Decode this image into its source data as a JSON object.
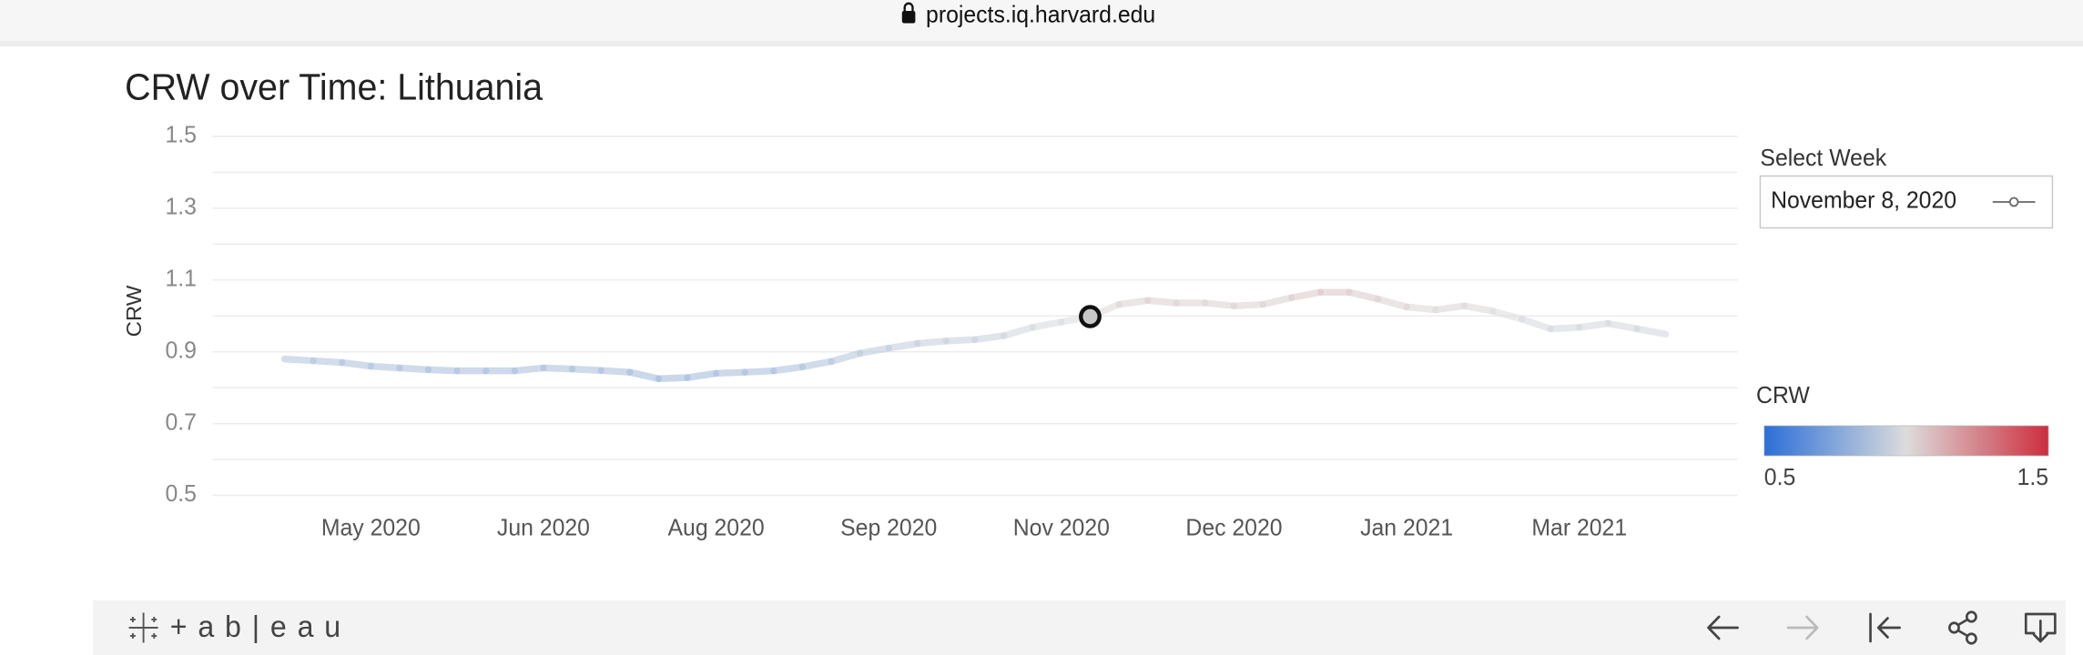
{
  "browser": {
    "url": "projects.iq.harvard.edu"
  },
  "chart_data": {
    "type": "line",
    "title": "CRW over Time: Lithuania",
    "y_label": "CRW",
    "x": [
      0,
      1,
      2,
      3,
      4,
      5,
      6,
      7,
      8,
      9,
      10,
      11,
      12,
      13,
      14,
      15,
      16,
      17,
      18,
      19,
      20,
      21,
      22,
      23,
      24,
      25,
      26,
      27,
      28,
      29,
      30,
      31,
      32,
      33,
      34,
      35,
      36,
      37,
      38,
      39,
      40,
      41,
      42,
      43,
      44,
      45,
      46,
      47,
      48
    ],
    "series": [
      {
        "name": "CRW",
        "values": [
          0.88,
          0.875,
          0.87,
          0.86,
          0.855,
          0.85,
          0.847,
          0.847,
          0.847,
          0.855,
          0.852,
          0.848,
          0.843,
          0.825,
          0.828,
          0.84,
          0.843,
          0.847,
          0.858,
          0.873,
          0.896,
          0.91,
          0.923,
          0.93,
          0.934,
          0.945,
          0.968,
          0.983,
          0.998,
          1.032,
          1.043,
          1.036,
          1.036,
          1.028,
          1.032,
          1.051,
          1.066,
          1.066,
          1.047,
          1.025,
          1.017,
          1.028,
          1.013,
          0.991,
          0.964,
          0.968,
          0.979,
          0.964,
          0.949
        ]
      }
    ],
    "highlighted_point": 28,
    "xlim": [
      -2.5,
      50.5
    ],
    "xticks": [
      {
        "value": 3,
        "label": "May 2020"
      },
      {
        "value": 9,
        "label": "Jun 2020"
      },
      {
        "value": 15,
        "label": "Aug 2020"
      },
      {
        "value": 21,
        "label": "Sep 2020"
      },
      {
        "value": 27,
        "label": "Nov 2020"
      },
      {
        "value": 33,
        "label": "Dec 2020"
      },
      {
        "value": 39,
        "label": "Jan 2021"
      },
      {
        "value": 45,
        "label": "Mar 2021"
      }
    ],
    "ylim": [
      0.5,
      1.5
    ],
    "yticks": [
      0.5,
      0.7,
      0.9,
      1.1,
      1.3,
      1.5
    ],
    "ygrid": [
      0.6,
      0.8,
      1.0,
      1.2,
      1.4
    ],
    "color_scale": {
      "title": "CRW",
      "min": 0.5,
      "max": 1.5,
      "colors": [
        "#2b6fd8",
        "#dcdcdc",
        "#cc2e3d"
      ]
    }
  },
  "filter": {
    "label": "Select Week",
    "value": "November 8, 2020"
  },
  "footer": {
    "logo": "+ a b | e a u"
  }
}
